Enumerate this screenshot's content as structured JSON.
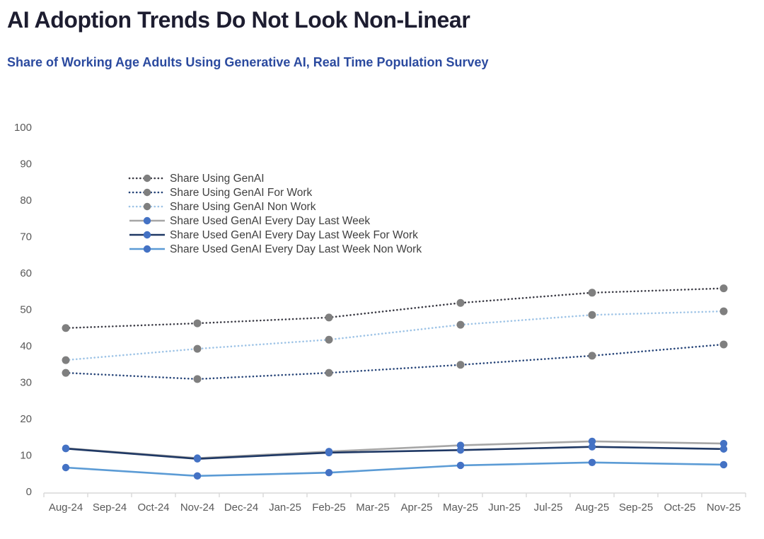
{
  "header": {
    "title": "AI Adoption Trends Do Not Look Non-Linear",
    "subtitle": "Share of Working Age Adults Using Generative AI, Real Time Population Survey"
  },
  "colors": {
    "background": "#ffffff",
    "title_text": "#1d1d30",
    "subtitle_text": "#2b4a9f",
    "axis_text": "#595959",
    "axis_line": "#d9d9d9",
    "legend_text": "#404040",
    "dotted_marker_gray": "#7f7f7f",
    "solid_marker_blue": "#4472c4"
  },
  "chart_data": {
    "type": "line",
    "title": "AI Adoption Trends Do Not Look Non-Linear",
    "subtitle": "Share of Working Age Adults Using Generative AI, Real Time Population Survey",
    "x_categories": [
      "Aug-24",
      "Sep-24",
      "Oct-24",
      "Nov-24",
      "Dec-24",
      "Jan-25",
      "Feb-25",
      "Mar-25",
      "Apr-25",
      "May-25",
      "Jun-25",
      "Jul-25",
      "Aug-25",
      "Sep-25",
      "Oct-25",
      "Nov-25"
    ],
    "data_month_indices": [
      0,
      3,
      6,
      9,
      12,
      15
    ],
    "data_months": [
      "Aug-24",
      "Nov-24",
      "Feb-25",
      "May-25",
      "Aug-25",
      "Nov-25"
    ],
    "ylim": [
      0,
      100
    ],
    "ytick_step": 10,
    "grid": false,
    "legend_position": "inside-top-left",
    "series": [
      {
        "name": "Share Using GenAI",
        "style": "dotted",
        "line_color": "#3a3a44",
        "marker_color": "#7f7f7f",
        "values": [
          44.9,
          46.2,
          47.8,
          51.8,
          54.6,
          55.8
        ]
      },
      {
        "name": "Share Using GenAI For Work",
        "style": "dotted",
        "line_color": "#264478",
        "marker_color": "#7f7f7f",
        "values": [
          32.6,
          30.9,
          32.6,
          34.8,
          37.3,
          40.4
        ]
      },
      {
        "name": "Share Using GenAI Non Work",
        "style": "dotted",
        "line_color": "#9dc3e6",
        "marker_color": "#7f7f7f",
        "values": [
          36.1,
          39.2,
          41.7,
          45.8,
          48.5,
          49.5
        ]
      },
      {
        "name": "Share Used GenAI Every Day Last Week",
        "style": "solid",
        "line_color": "#a6a6a6",
        "marker_color": "#4472c4",
        "values": [
          11.9,
          9.2,
          11.0,
          12.7,
          13.8,
          13.2
        ]
      },
      {
        "name": "Share Used GenAI Every Day Last Week For Work",
        "style": "solid",
        "line_color": "#1f3864",
        "marker_color": "#4472c4",
        "values": [
          11.8,
          9.0,
          10.7,
          11.4,
          12.3,
          11.7
        ]
      },
      {
        "name": "Share Used GenAI Every Day Last Week Non Work",
        "style": "solid",
        "line_color": "#5b9bd5",
        "marker_color": "#4472c4",
        "values": [
          6.6,
          4.3,
          5.2,
          7.2,
          8.0,
          7.4
        ]
      }
    ]
  }
}
